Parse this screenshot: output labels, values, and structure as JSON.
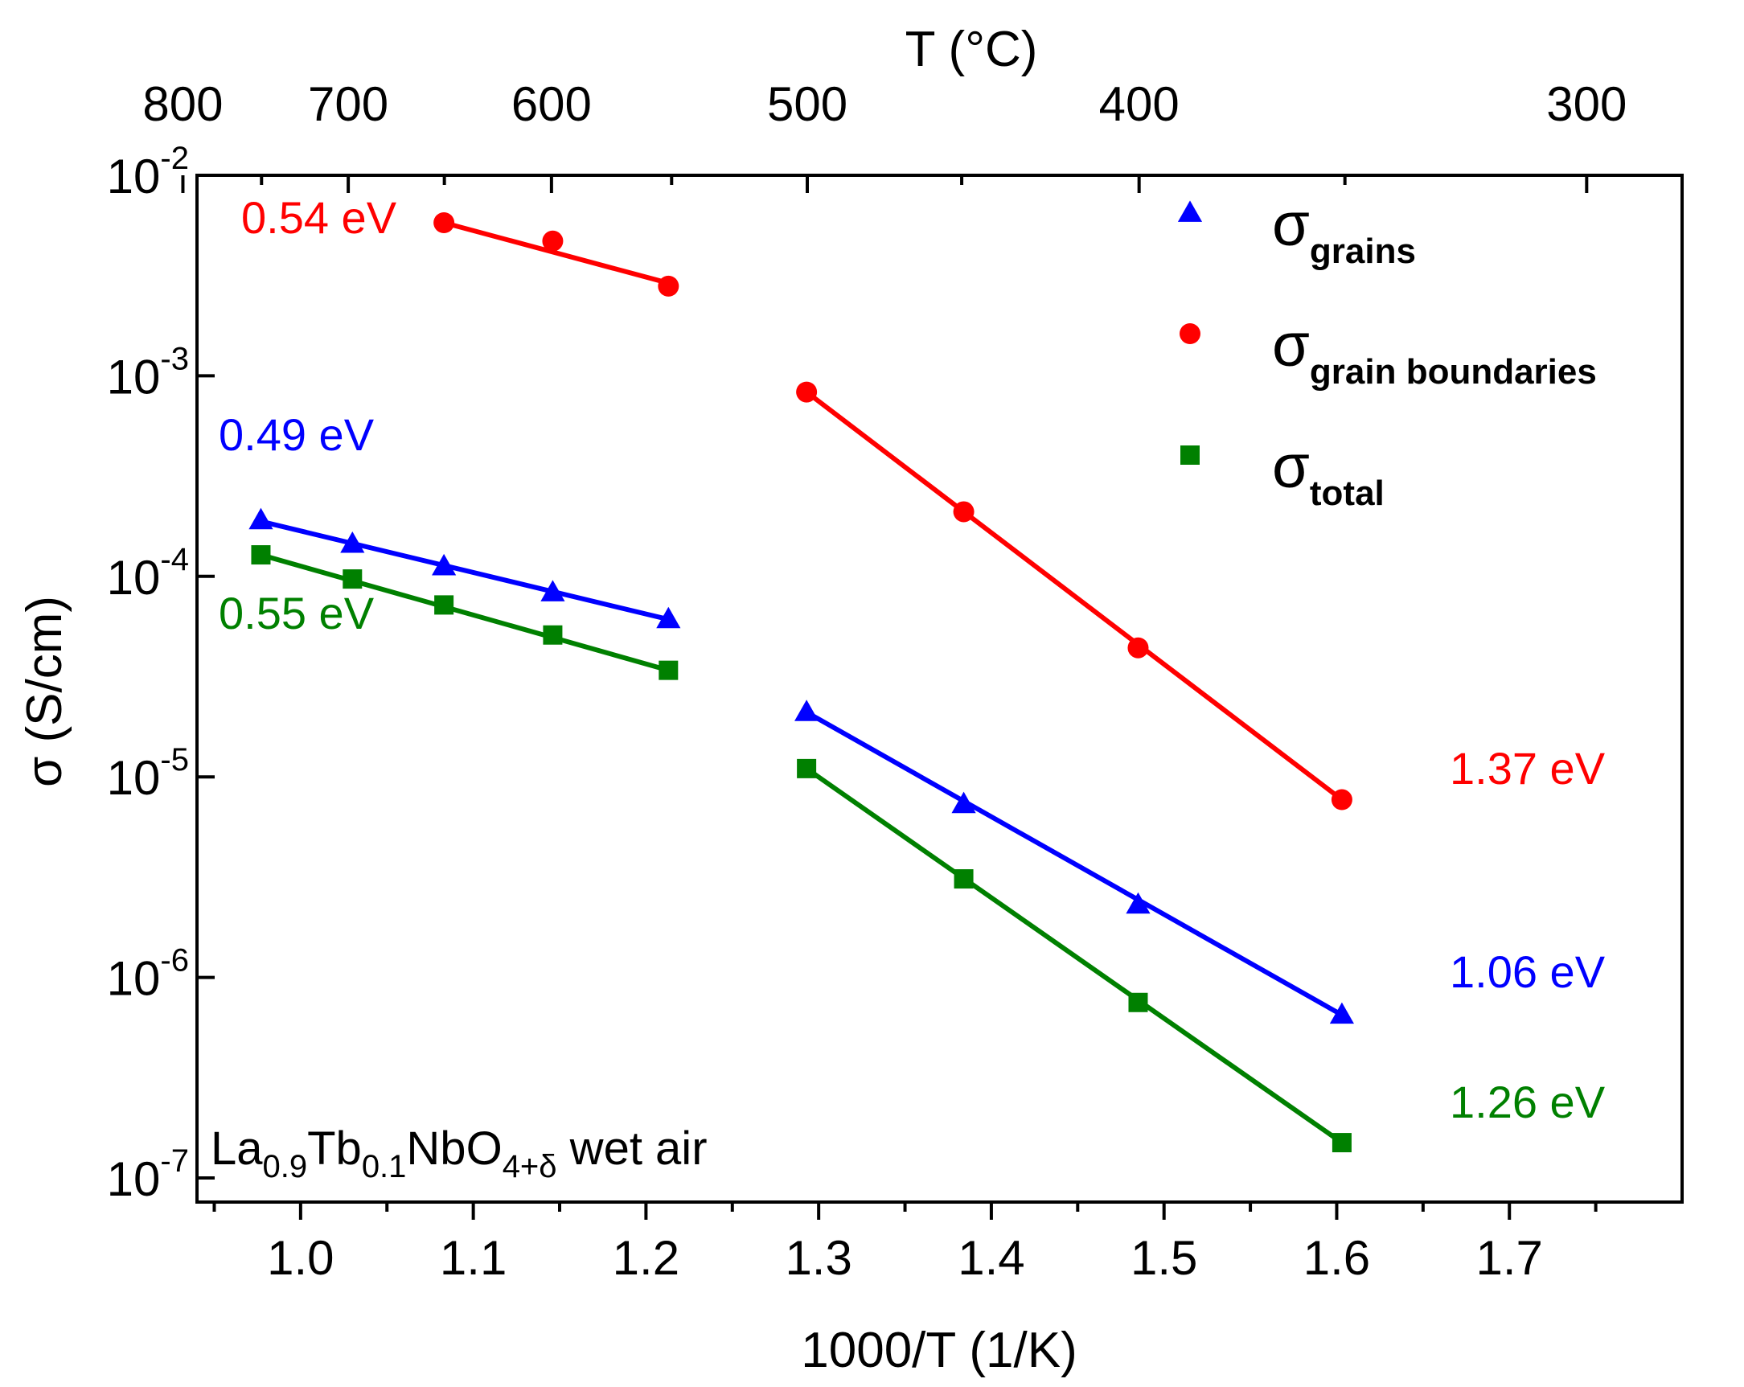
{
  "chart_data": {
    "type": "scatter",
    "yscale": "log",
    "xlabel": "1000/T (1/K)",
    "ylabel": "σ (S/cm)",
    "top_xlabel": "T (°C)",
    "xlim": [
      0.94,
      1.8
    ],
    "ylim": [
      1e-07,
      0.01
    ],
    "x_ticks": [
      "1.0",
      "1.1",
      "1.2",
      "1.3",
      "1.4",
      "1.5",
      "1.6",
      "1.7"
    ],
    "y_ticks": [
      {
        "value": 0.01,
        "base": "10",
        "exp": "-2"
      },
      {
        "value": 0.001,
        "base": "10",
        "exp": "-3"
      },
      {
        "value": 0.0001,
        "base": "10",
        "exp": "-4"
      },
      {
        "value": 1e-05,
        "base": "10",
        "exp": "-5"
      },
      {
        "value": 1e-06,
        "base": "10",
        "exp": "-6"
      },
      {
        "value": 1e-07,
        "base": "10",
        "exp": "-7"
      }
    ],
    "top_ticks": [
      "800",
      "700",
      "600",
      "500",
      "400",
      "300"
    ],
    "series": [
      {
        "name": "σ grains",
        "symbol": "σ",
        "subscript": "grains",
        "marker": "triangle",
        "color": "#0000ff",
        "x": [
          0.977,
          1.03,
          1.083,
          1.146,
          1.213,
          1.293,
          1.384,
          1.485,
          1.603
        ],
        "y": [
          0.00019,
          0.000145,
          0.000112,
          8.3e-05,
          6.1e-05,
          2.1e-05,
          7.3e-06,
          2.3e-06,
          6.5e-07
        ],
        "fits": [
          {
            "x": [
              0.977,
              1.213
            ],
            "y": [
              0.000188,
              6.1e-05
            ]
          },
          {
            "x": [
              1.293,
              1.603
            ],
            "y": [
              2.1e-05,
              6.5e-07
            ]
          }
        ]
      },
      {
        "name": "σ grain boundaries",
        "symbol": "σ",
        "subscript": "grain boundaries",
        "marker": "circle",
        "color": "#ff0000",
        "x": [
          1.083,
          1.146,
          1.213,
          1.293,
          1.384,
          1.485,
          1.603
        ],
        "y": [
          0.0058,
          0.0047,
          0.0028,
          0.00083,
          0.00021,
          4.4e-05,
          7.7e-06
        ],
        "fits": [
          {
            "x": [
              1.083,
              1.213
            ],
            "y": [
              0.0058,
              0.0029
            ]
          },
          {
            "x": [
              1.293,
              1.603
            ],
            "y": [
              0.00083,
              7.7e-06
            ]
          }
        ]
      },
      {
        "name": "σ total",
        "symbol": "σ",
        "subscript": "total",
        "marker": "square",
        "color": "#008000",
        "x": [
          0.977,
          1.03,
          1.083,
          1.146,
          1.213,
          1.293,
          1.384,
          1.485,
          1.603
        ],
        "y": [
          0.000128,
          9.7e-05,
          7.2e-05,
          5.1e-05,
          3.4e-05,
          1.1e-05,
          3.1e-06,
          7.5e-07,
          1.5e-07
        ],
        "fits": [
          {
            "x": [
              0.977,
              1.213
            ],
            "y": [
              0.000128,
              3.4e-05
            ]
          },
          {
            "x": [
              1.293,
              1.603
            ],
            "y": [
              1.1e-05,
              1.5e-07
            ]
          }
        ]
      }
    ],
    "annotations": [
      {
        "text": "0.54 eV",
        "color": "#ff0000"
      },
      {
        "text": "0.49 eV",
        "color": "#0000ff"
      },
      {
        "text": "0.55 eV",
        "color": "#008000"
      },
      {
        "text": "1.37 eV",
        "color": "#ff0000"
      },
      {
        "text": "1.06 eV",
        "color": "#0000ff"
      },
      {
        "text": "1.26 eV",
        "color": "#008000"
      }
    ],
    "sample_label": {
      "parts": [
        {
          "text": "La",
          "sub": false
        },
        {
          "text": "0.9",
          "sub": true
        },
        {
          "text": "Tb",
          "sub": false
        },
        {
          "text": "0.1",
          "sub": true
        },
        {
          "text": "NbO",
          "sub": false
        },
        {
          "text": "4+δ",
          "sub": true
        },
        {
          "text": " wet air",
          "sub": false
        }
      ]
    }
  }
}
